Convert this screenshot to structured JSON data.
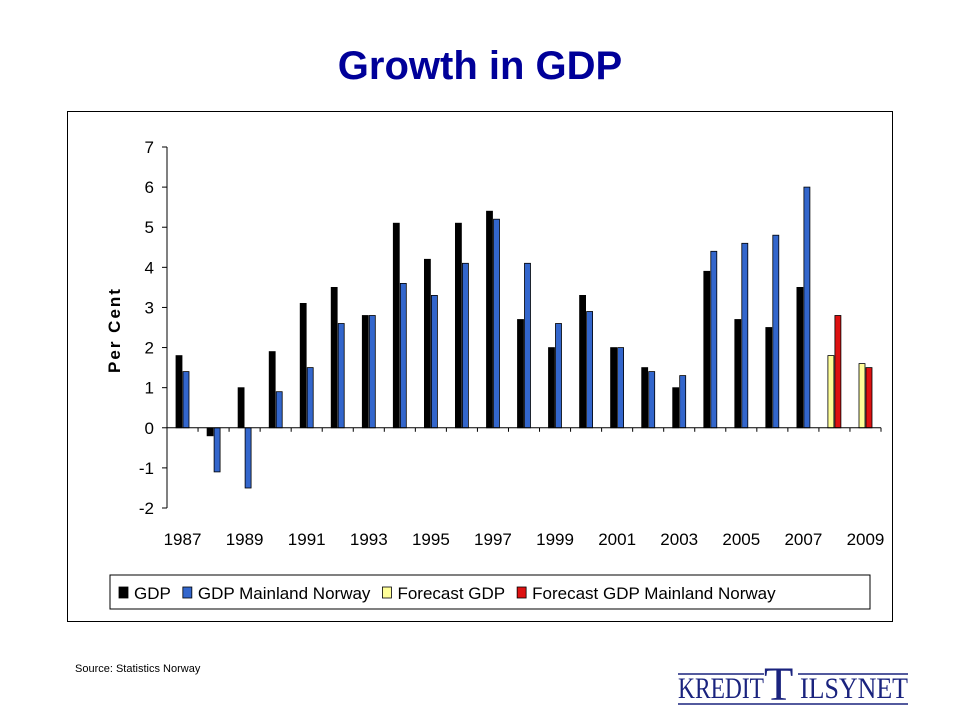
{
  "title": "Growth in GDP",
  "source": "Source: Statistics Norway",
  "logo": {
    "text": "KREDITTILSYNET",
    "part1": "KREDIT",
    "big_letter": "T",
    "part2": "ILSYNET",
    "color": "#1a237e"
  },
  "chart_data": {
    "type": "bar",
    "title": "",
    "xlabel": "",
    "ylabel": "Per Cent",
    "ylim": [
      -2,
      7
    ],
    "yticks": [
      -2,
      -1,
      0,
      1,
      2,
      3,
      4,
      5,
      6,
      7
    ],
    "categories": [
      "1987",
      "1988",
      "1989",
      "1990",
      "1991",
      "1992",
      "1993",
      "1994",
      "1995",
      "1996",
      "1997",
      "1998",
      "1999",
      "2000",
      "2001",
      "2002",
      "2003",
      "2004",
      "2005",
      "2006",
      "2007",
      "2008",
      "2009"
    ],
    "tick_labels": [
      "1987",
      "1989",
      "1991",
      "1993",
      "1995",
      "1997",
      "1999",
      "2001",
      "2003",
      "2005",
      "2007",
      "2009"
    ],
    "grid": false,
    "legend_position": "bottom",
    "series": [
      {
        "name": "GDP",
        "color": "#000000",
        "values": [
          1.8,
          -0.2,
          1.0,
          1.9,
          3.1,
          3.5,
          2.8,
          5.1,
          4.2,
          5.1,
          5.4,
          2.7,
          2.0,
          3.3,
          2.0,
          1.5,
          1.0,
          3.9,
          2.7,
          2.5,
          3.5,
          null,
          null
        ]
      },
      {
        "name": "GDP Mainland Norway",
        "color": "#3366cc",
        "values": [
          1.4,
          -1.1,
          -1.5,
          0.9,
          1.5,
          2.6,
          2.8,
          3.6,
          3.3,
          4.1,
          5.2,
          4.1,
          2.6,
          2.9,
          2.0,
          1.4,
          1.3,
          4.4,
          4.6,
          4.8,
          6.0,
          null,
          null
        ]
      },
      {
        "name": "Forecast GDP",
        "color": "#ffff99",
        "values": [
          null,
          null,
          null,
          null,
          null,
          null,
          null,
          null,
          null,
          null,
          null,
          null,
          null,
          null,
          null,
          null,
          null,
          null,
          null,
          null,
          null,
          1.8,
          1.6
        ]
      },
      {
        "name": "Forecast GDP Mainland Norway",
        "color": "#dd1111",
        "values": [
          null,
          null,
          null,
          null,
          null,
          null,
          null,
          null,
          null,
          null,
          null,
          null,
          null,
          null,
          null,
          null,
          null,
          null,
          null,
          null,
          null,
          2.8,
          1.5
        ]
      }
    ]
  }
}
